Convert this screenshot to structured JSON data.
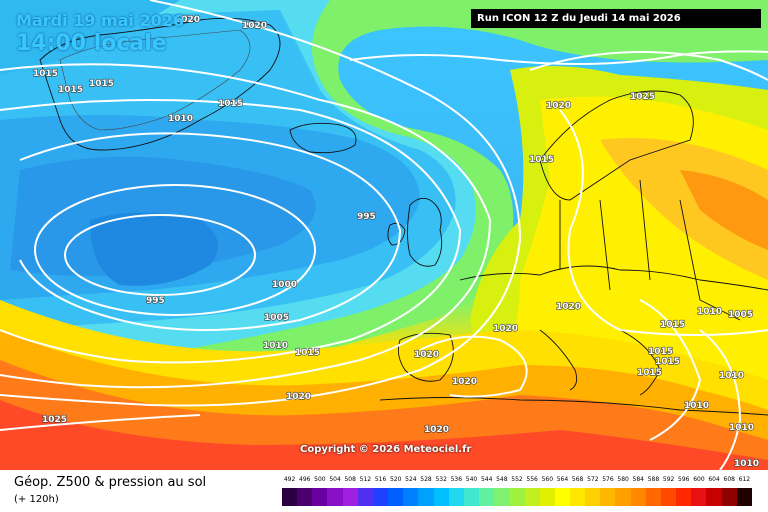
{
  "header": {
    "date_line": "Mardi 19 mai 2026",
    "time_line": "14:00 locale",
    "run_info": "Run ICON 12 Z du Jeudi 14 mai 2026"
  },
  "copyright": "Copyright © 2026 Meteociel.fr",
  "legend": {
    "title": "Géop. Z500 & pression au sol",
    "subtitle": "(+ 120h)",
    "scale_values": [
      "492",
      "496",
      "500",
      "504",
      "508",
      "512",
      "516",
      "520",
      "524",
      "528",
      "532",
      "536",
      "540",
      "544",
      "548",
      "552",
      "556",
      "560",
      "564",
      "568",
      "572",
      "576",
      "580",
      "584",
      "588",
      "592",
      "596",
      "600",
      "604",
      "608",
      "612"
    ],
    "scale_colors": [
      "#2a0040",
      "#4b0070",
      "#6a00a0",
      "#8a10c8",
      "#a020e0",
      "#5030f0",
      "#2040ff",
      "#0060ff",
      "#0080ff",
      "#00a0ff",
      "#00c0ff",
      "#20d8f0",
      "#40e8d0",
      "#60f0a0",
      "#80f070",
      "#a0f040",
      "#c0f020",
      "#e0f000",
      "#ffff00",
      "#ffe800",
      "#ffd000",
      "#ffb800",
      "#ffa000",
      "#ff8800",
      "#ff6800",
      "#ff4800",
      "#ff2800",
      "#e81010",
      "#c80000",
      "#900000",
      "#200000"
    ]
  },
  "isobar_labels": [
    "1020",
    "1020",
    "1015",
    "1015",
    "1015",
    "1010",
    "1015",
    "1020",
    "1025",
    "1015",
    "995",
    "1000",
    "995",
    "1005",
    "1010",
    "1015",
    "1020",
    "1020",
    "1020",
    "1020",
    "1015",
    "1010",
    "1005",
    "1015",
    "1015",
    "1015",
    "1010",
    "1010",
    "1010",
    "1020",
    "1025",
    "1010",
    "1020"
  ],
  "map": {
    "colors": {
      "deep_low": "#1f8fe8",
      "low": "#38b4f2",
      "cyan": "#55dcf0",
      "teal": "#68e8c0",
      "green": "#7ef06a",
      "yellowgreen": "#c8f020",
      "yellow": "#ffef00",
      "orange": "#ffb000",
      "red": "#ff4a28"
    }
  }
}
